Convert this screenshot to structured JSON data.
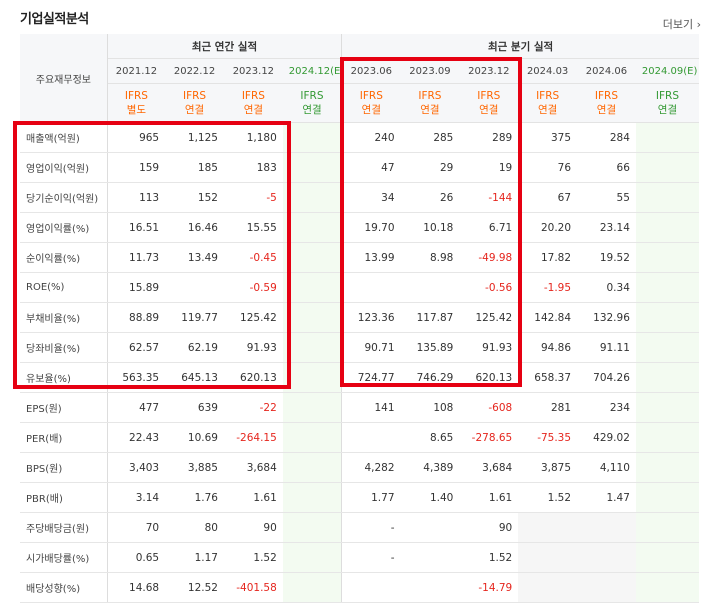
{
  "title": "기업실적분석",
  "more": "더보기",
  "header": {
    "corner": "주요재무정보",
    "annual_group": "최근 연간 실적",
    "quarter_group": "최근 분기 실적",
    "est_mark": "(E)",
    "annual_periods": [
      "2021.12",
      "2022.12",
      "2023.12",
      "2024.12"
    ],
    "annual_est": [
      false,
      false,
      false,
      true
    ],
    "quarter_periods": [
      "2023.06",
      "2023.09",
      "2023.12",
      "2024.03",
      "2024.06",
      "2024.09"
    ],
    "quarter_est": [
      false,
      false,
      false,
      false,
      false,
      true
    ],
    "annual_basis": [
      [
        "IFRS",
        "별도"
      ],
      [
        "IFRS",
        "연결"
      ],
      [
        "IFRS",
        "연결"
      ],
      [
        "IFRS",
        "연결"
      ]
    ],
    "quarter_basis": [
      [
        "IFRS",
        "연결"
      ],
      [
        "IFRS",
        "연결"
      ],
      [
        "IFRS",
        "연결"
      ],
      [
        "IFRS",
        "연결"
      ],
      [
        "IFRS",
        "연결"
      ],
      [
        "IFRS",
        "연결"
      ]
    ]
  },
  "rows": [
    {
      "label": "매출액(억원)",
      "annual": [
        "965",
        "1,125",
        "1,180",
        ""
      ],
      "quarter": [
        "240",
        "285",
        "289",
        "375",
        "284",
        ""
      ]
    },
    {
      "label": "영업이익(억원)",
      "annual": [
        "159",
        "185",
        "183",
        ""
      ],
      "quarter": [
        "47",
        "29",
        "19",
        "76",
        "66",
        ""
      ]
    },
    {
      "label": "당기순이익(억원)",
      "annual": [
        "113",
        "152",
        "-5",
        ""
      ],
      "quarter": [
        "34",
        "26",
        "-144",
        "67",
        "55",
        ""
      ]
    },
    {
      "label": "영업이익률(%)",
      "annual": [
        "16.51",
        "16.46",
        "15.55",
        ""
      ],
      "quarter": [
        "19.70",
        "10.18",
        "6.71",
        "20.20",
        "23.14",
        ""
      ]
    },
    {
      "label": "순이익률(%)",
      "annual": [
        "11.73",
        "13.49",
        "-0.45",
        ""
      ],
      "quarter": [
        "13.99",
        "8.98",
        "-49.98",
        "17.82",
        "19.52",
        ""
      ]
    },
    {
      "label": "ROE(%)",
      "annual": [
        "15.89",
        "",
        "-0.59",
        ""
      ],
      "quarter": [
        "",
        "",
        "-0.56",
        "-1.95",
        "0.34",
        ""
      ]
    },
    {
      "label": "부채비율(%)",
      "annual": [
        "88.89",
        "119.77",
        "125.42",
        ""
      ],
      "quarter": [
        "123.36",
        "117.87",
        "125.42",
        "142.84",
        "132.96",
        ""
      ]
    },
    {
      "label": "당좌비율(%)",
      "annual": [
        "62.57",
        "62.19",
        "91.93",
        ""
      ],
      "quarter": [
        "90.71",
        "135.89",
        "91.93",
        "94.86",
        "91.11",
        ""
      ]
    },
    {
      "label": "유보율(%)",
      "annual": [
        "563.35",
        "645.13",
        "620.13",
        ""
      ],
      "quarter": [
        "724.77",
        "746.29",
        "620.13",
        "658.37",
        "704.26",
        ""
      ]
    },
    {
      "label": "EPS(원)",
      "annual": [
        "477",
        "639",
        "-22",
        ""
      ],
      "quarter": [
        "141",
        "108",
        "-608",
        "281",
        "234",
        ""
      ]
    },
    {
      "label": "PER(배)",
      "annual": [
        "22.43",
        "10.69",
        "-264.15",
        ""
      ],
      "quarter": [
        "",
        "8.65",
        "-278.65",
        "-75.35",
        "429.02",
        ""
      ]
    },
    {
      "label": "BPS(원)",
      "annual": [
        "3,403",
        "3,885",
        "3,684",
        ""
      ],
      "quarter": [
        "4,282",
        "4,389",
        "3,684",
        "3,875",
        "4,110",
        ""
      ]
    },
    {
      "label": "PBR(배)",
      "annual": [
        "3.14",
        "1.76",
        "1.61",
        ""
      ],
      "quarter": [
        "1.77",
        "1.40",
        "1.61",
        "1.52",
        "1.47",
        ""
      ]
    },
    {
      "label": "주당배당금(원)",
      "annual": [
        "70",
        "80",
        "90",
        ""
      ],
      "quarter": [
        "-",
        "",
        "90",
        "",
        "",
        ""
      ]
    },
    {
      "label": "시가배당률(%)",
      "annual": [
        "0.65",
        "1.17",
        "1.52",
        ""
      ],
      "quarter": [
        "-",
        "",
        "1.52",
        "",
        "",
        ""
      ]
    },
    {
      "label": "배당성향(%)",
      "annual": [
        "14.68",
        "12.52",
        "-401.58",
        ""
      ],
      "quarter": [
        "",
        "",
        "-14.79",
        "",
        "",
        ""
      ]
    }
  ],
  "colors": {
    "highlight_box": "#e60012",
    "negative": "#e5261e",
    "ifrs": "#ff6600",
    "estimate": "#339933"
  }
}
